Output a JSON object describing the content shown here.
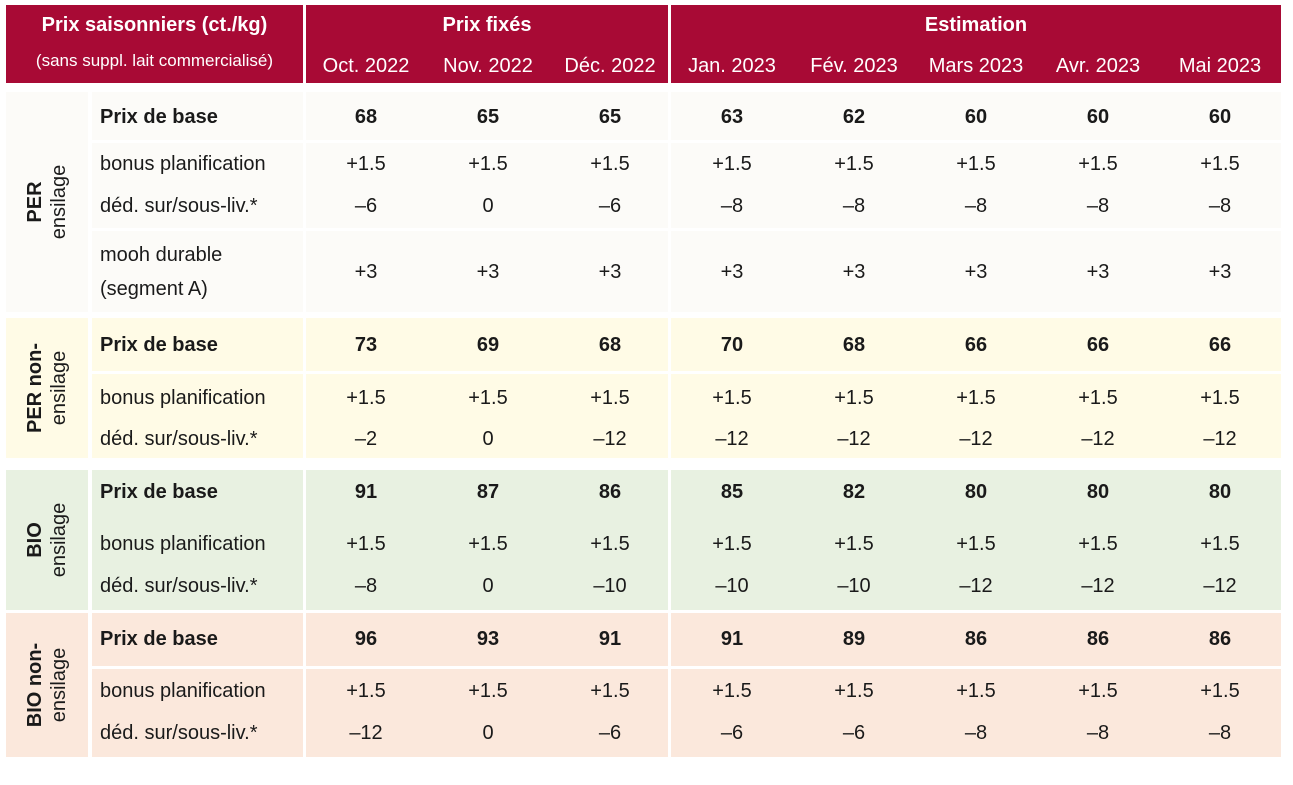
{
  "header": {
    "title": "Prix saisonniers (ct./kg)",
    "subtitle": "(sans suppl. lait commercialisé)",
    "group_fixed": "Prix fixés",
    "group_estimate": "Estimation",
    "months": [
      "Oct. 2022",
      "Nov. 2022",
      "Déc. 2022",
      "Jan. 2023",
      "Fév. 2023",
      "Mars 2023",
      "Avr. 2023",
      "Mai 2023"
    ]
  },
  "sections": [
    {
      "line1": "PER",
      "line2": "ensilage",
      "color": "#fcfbf8",
      "rows": [
        {
          "label": "Prix de base",
          "bold": true,
          "values": [
            "68",
            "65",
            "65",
            "63",
            "62",
            "60",
            "60",
            "60"
          ]
        },
        {
          "label": "bonus planification",
          "bold": false,
          "values": [
            "+1.5",
            "+1.5",
            "+1.5",
            "+1.5",
            "+1.5",
            "+1.5",
            "+1.5",
            "+1.5"
          ]
        },
        {
          "label": "déd. sur/sous-liv.*",
          "bold": false,
          "values": [
            "–6",
            "0",
            "–6",
            "–8",
            "–8",
            "–8",
            "–8",
            "–8"
          ]
        },
        {
          "label": "mooh durable",
          "label2": "(segment A)",
          "bold": false,
          "values": [
            "+3",
            "+3",
            "+3",
            "+3",
            "+3",
            "+3",
            "+3",
            "+3"
          ]
        }
      ]
    },
    {
      "line1": "PER non-",
      "line2": "ensilage",
      "color": "#fffbe6",
      "rows": [
        {
          "label": "Prix de base",
          "bold": true,
          "values": [
            "73",
            "69",
            "68",
            "70",
            "68",
            "66",
            "66",
            "66"
          ]
        },
        {
          "label": "bonus planification",
          "bold": false,
          "values": [
            "+1.5",
            "+1.5",
            "+1.5",
            "+1.5",
            "+1.5",
            "+1.5",
            "+1.5",
            "+1.5"
          ]
        },
        {
          "label": "déd. sur/sous-liv.*",
          "bold": false,
          "values": [
            "–2",
            "0",
            "–12",
            "–12",
            "–12",
            "–12",
            "–12",
            "–12"
          ]
        }
      ]
    },
    {
      "line1": "BIO",
      "line2": "ensilage",
      "color": "#e8f1e1",
      "rows": [
        {
          "label": "Prix de base",
          "bold": true,
          "values": [
            "91",
            "87",
            "86",
            "85",
            "82",
            "80",
            "80",
            "80"
          ]
        },
        {
          "label": "bonus planification",
          "bold": false,
          "values": [
            "+1.5",
            "+1.5",
            "+1.5",
            "+1.5",
            "+1.5",
            "+1.5",
            "+1.5",
            "+1.5"
          ]
        },
        {
          "label": "déd. sur/sous-liv.*",
          "bold": false,
          "values": [
            "–8",
            "0",
            "–10",
            "–10",
            "–10",
            "–12",
            "–12",
            "–12"
          ]
        }
      ]
    },
    {
      "line1": "BIO non-",
      "line2": "ensilage",
      "color": "#fbe8dc",
      "rows": [
        {
          "label": "Prix de base",
          "bold": true,
          "values": [
            "96",
            "93",
            "91",
            "91",
            "89",
            "86",
            "86",
            "86"
          ]
        },
        {
          "label": "bonus planification",
          "bold": false,
          "values": [
            "+1.5",
            "+1.5",
            "+1.5",
            "+1.5",
            "+1.5",
            "+1.5",
            "+1.5",
            "+1.5"
          ]
        },
        {
          "label": "déd. sur/sous-liv.*",
          "bold": false,
          "values": [
            "–12",
            "0",
            "–6",
            "–6",
            "–6",
            "–8",
            "–8",
            "–8"
          ]
        }
      ]
    }
  ]
}
